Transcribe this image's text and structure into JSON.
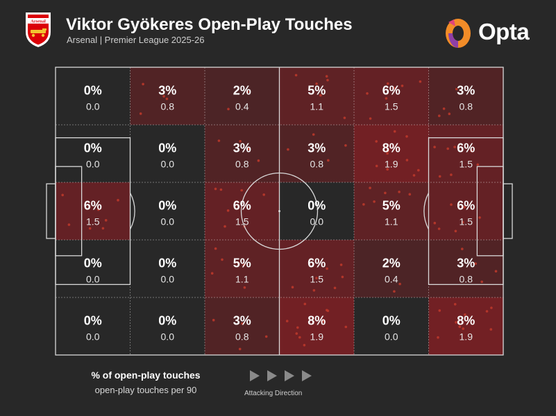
{
  "header": {
    "title": "Viktor Gyökeres Open-Play Touches",
    "subtitle": "Arsenal | Premier League 2025-26",
    "club_badge_text": "Arsenal",
    "brand": "Opta"
  },
  "legend": {
    "pct_label": "% of open-play touches",
    "p90_label": "open-play touches per 90",
    "direction_label": "Attacking Direction"
  },
  "colors": {
    "background": "#282828",
    "heat_max": "#7a1f24",
    "line": "#d9d9d9",
    "dot": "#c0392b",
    "badge_red": "#db0007",
    "opta_orange": "#f28c28",
    "opta_purple": "#8e3fa6"
  },
  "chart_data": {
    "type": "heatmap",
    "rows": 5,
    "cols": 6,
    "cells": [
      [
        {
          "pct": "0%",
          "p90": "0.0"
        },
        {
          "pct": "3%",
          "p90": "0.8"
        },
        {
          "pct": "2%",
          "p90": "0.4"
        },
        {
          "pct": "5%",
          "p90": "1.1"
        },
        {
          "pct": "6%",
          "p90": "1.5"
        },
        {
          "pct": "3%",
          "p90": "0.8"
        }
      ],
      [
        {
          "pct": "0%",
          "p90": "0.0"
        },
        {
          "pct": "0%",
          "p90": "0.0"
        },
        {
          "pct": "3%",
          "p90": "0.8"
        },
        {
          "pct": "3%",
          "p90": "0.8"
        },
        {
          "pct": "8%",
          "p90": "1.9"
        },
        {
          "pct": "6%",
          "p90": "1.5"
        }
      ],
      [
        {
          "pct": "6%",
          "p90": "1.5"
        },
        {
          "pct": "0%",
          "p90": "0.0"
        },
        {
          "pct": "6%",
          "p90": "1.5"
        },
        {
          "pct": "0%",
          "p90": "0.0"
        },
        {
          "pct": "5%",
          "p90": "1.1"
        },
        {
          "pct": "6%",
          "p90": "1.5"
        }
      ],
      [
        {
          "pct": "0%",
          "p90": "0.0"
        },
        {
          "pct": "0%",
          "p90": "0.0"
        },
        {
          "pct": "5%",
          "p90": "1.1"
        },
        {
          "pct": "6%",
          "p90": "1.5"
        },
        {
          "pct": "2%",
          "p90": "0.4"
        },
        {
          "pct": "3%",
          "p90": "0.8"
        }
      ],
      [
        {
          "pct": "0%",
          "p90": "0.0"
        },
        {
          "pct": "0%",
          "p90": "0.0"
        },
        {
          "pct": "3%",
          "p90": "0.8"
        },
        {
          "pct": "8%",
          "p90": "1.9"
        },
        {
          "pct": "0%",
          "p90": "0.0"
        },
        {
          "pct": "8%",
          "p90": "1.9"
        }
      ]
    ],
    "attacking_direction": "left-to-right"
  }
}
